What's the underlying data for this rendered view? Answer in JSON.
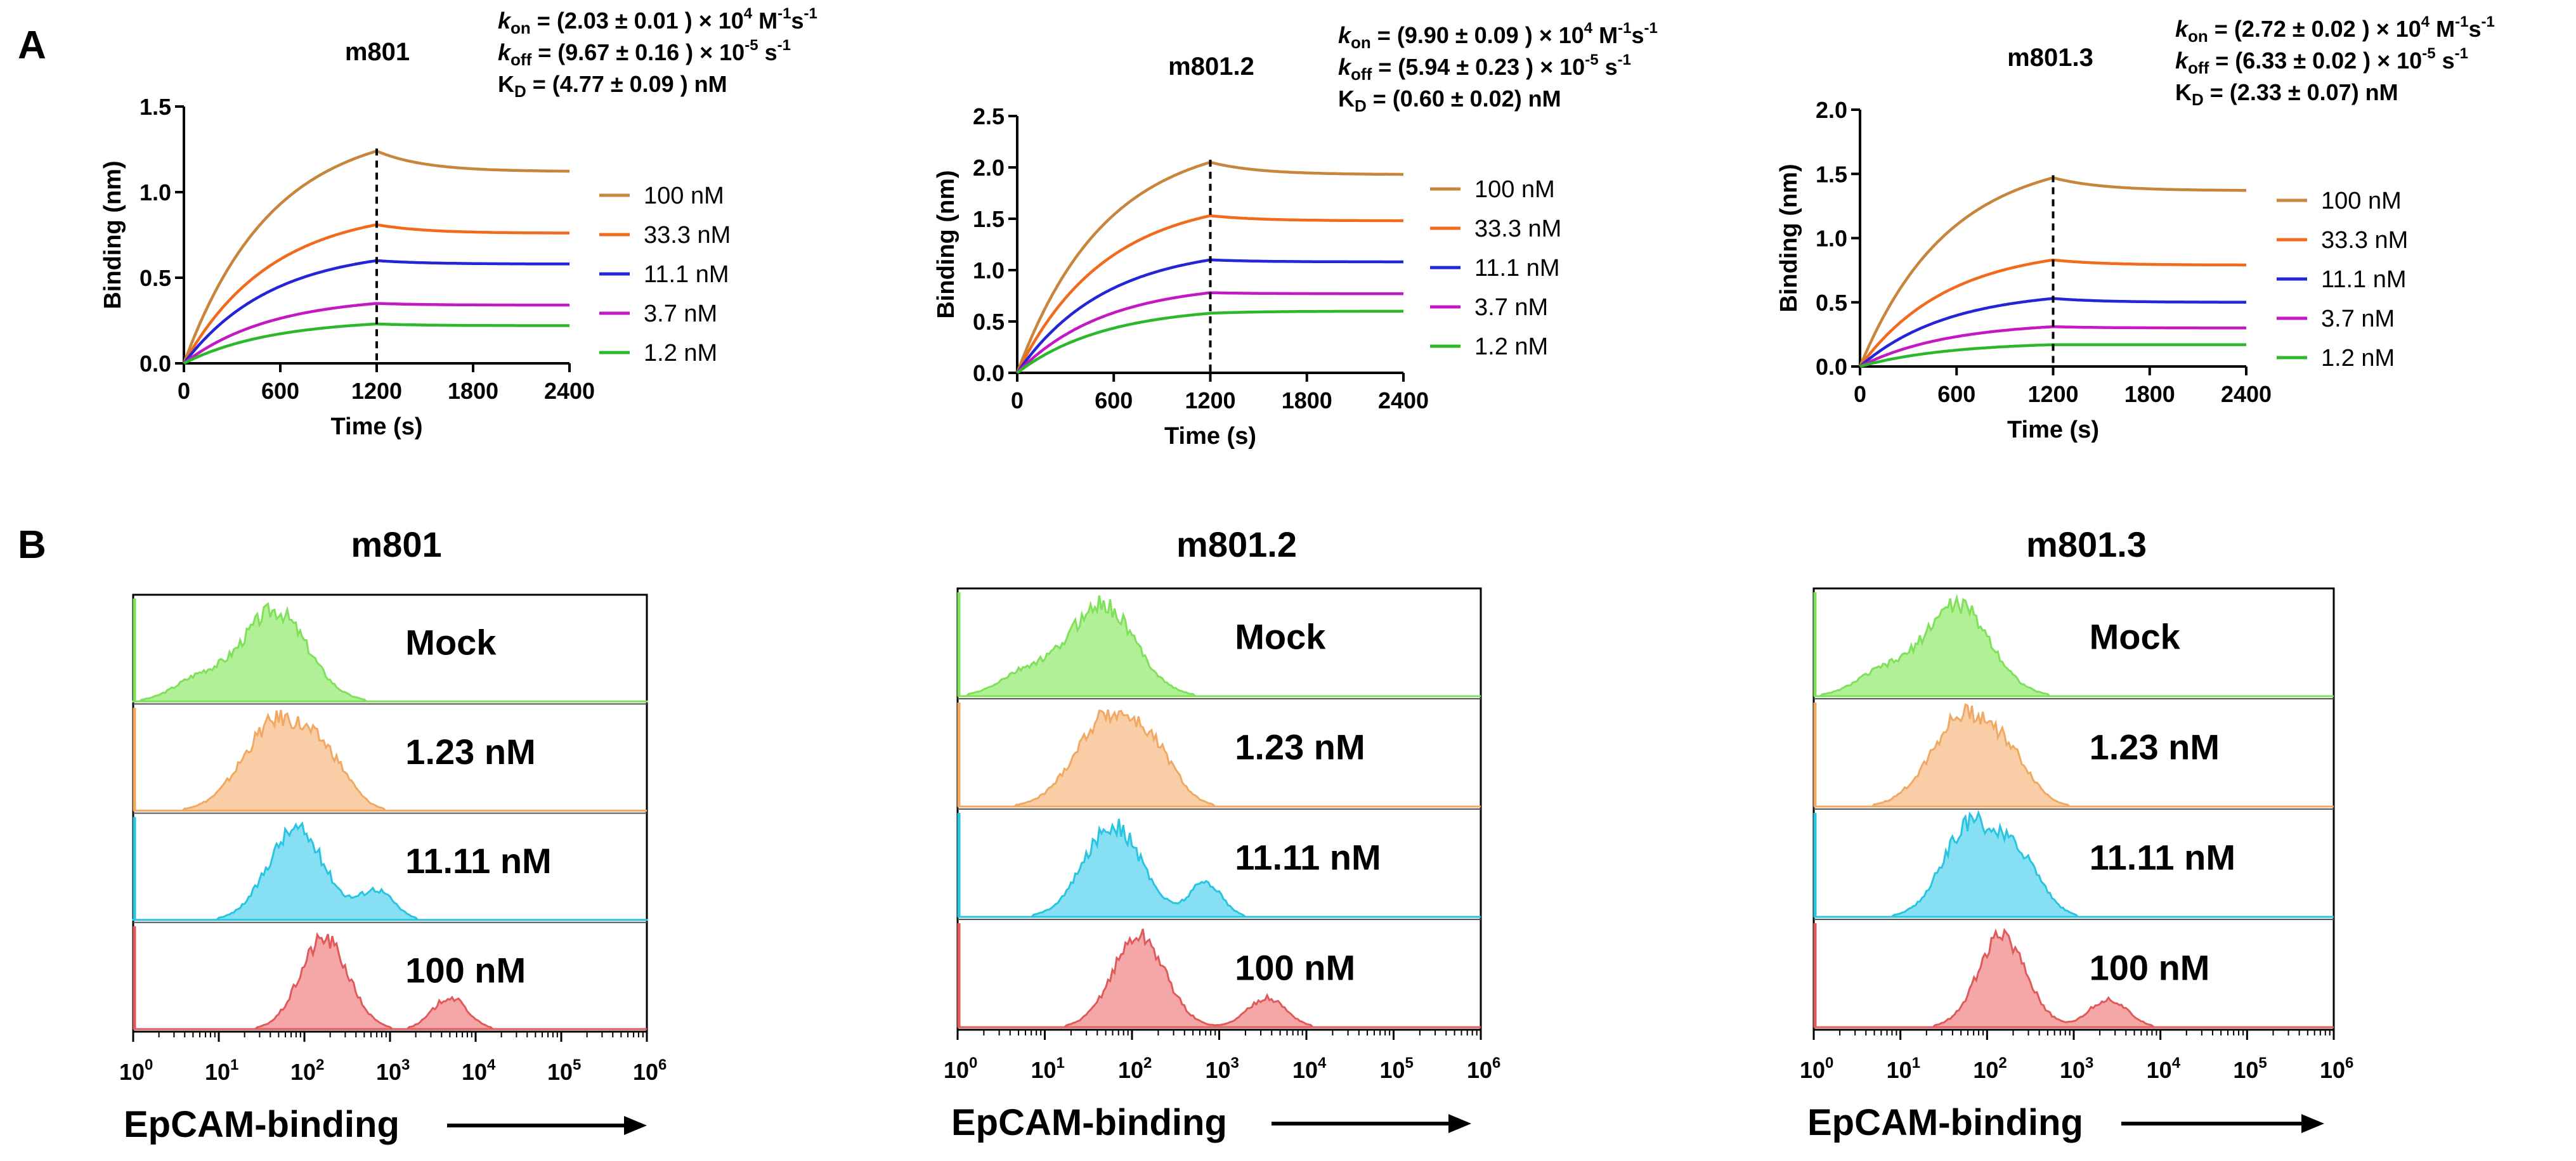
{
  "panel_labels": [
    "A",
    "B"
  ],
  "chart_data": [
    {
      "type": "line",
      "panel": "A",
      "title": "m801",
      "xlabel": "Time (s)",
      "ylabel": "Binding (nm)",
      "xlim": [
        0,
        2400
      ],
      "ylim": [
        0,
        1.5
      ],
      "xticks": [
        "0",
        "600",
        "1200",
        "1800",
        "2400"
      ],
      "yticks": [
        "0.0",
        "0.5",
        "1.0",
        "1.5"
      ],
      "dissociation_start": 1200,
      "stats": {
        "kon": {
          "sym": "k",
          "sub": "on",
          "text": " = (2.03 ± 0.01 ) × 10",
          "exp": "4",
          "unit": " M",
          "unit_exp": "-1",
          "tail": "s",
          "tail_exp": "-1"
        },
        "koff": {
          "sym": "k",
          "sub": "off",
          "text": " = (9.67 ± 0.16 ) × 10",
          "exp": "-5",
          "unit": " s",
          "unit_exp": "-1"
        },
        "kd": {
          "sym": "K",
          "sub": "D",
          "text": " = (4.77 ± 0.09 ) nM"
        }
      },
      "series": [
        {
          "name": "100 nM",
          "color": "#C8853C",
          "plateau": 1.24,
          "end": 1.12
        },
        {
          "name": "33.3 nM",
          "color": "#F26A1B",
          "plateau": 0.81,
          "end": 0.76
        },
        {
          "name": "11.1 nM",
          "color": "#2525D8",
          "plateau": 0.6,
          "end": 0.58
        },
        {
          "name": "3.7 nM",
          "color": "#C318C3",
          "plateau": 0.35,
          "end": 0.34
        },
        {
          "name": "1.2 nM",
          "color": "#2BB82B",
          "plateau": 0.23,
          "end": 0.22
        }
      ]
    },
    {
      "type": "line",
      "panel": "A",
      "title": "m801.2",
      "xlabel": "Time (s)",
      "ylabel": "Binding (nm)",
      "xlim": [
        0,
        2400
      ],
      "ylim": [
        0,
        2.5
      ],
      "xticks": [
        "0",
        "600",
        "1200",
        "1800",
        "2400"
      ],
      "yticks": [
        "0.0",
        "0.5",
        "1.0",
        "1.5",
        "2.0",
        "2.5"
      ],
      "dissociation_start": 1200,
      "stats": {
        "kon": {
          "sym": "k",
          "sub": "on",
          "text": " = (9.90 ± 0.09 ) × 10",
          "exp": "4",
          "unit": " M",
          "unit_exp": "-1",
          "tail": "s",
          "tail_exp": "-1"
        },
        "koff": {
          "sym": "k",
          "sub": "off",
          "text": " = (5.94 ± 0.23 ) × 10",
          "exp": "-5",
          "unit": " s",
          "unit_exp": "-1"
        },
        "kd": {
          "sym": "K",
          "sub": "D",
          "text": " = (0.60 ± 0.02) nM"
        }
      },
      "series": [
        {
          "name": "100 nM",
          "color": "#C8853C",
          "plateau": 2.05,
          "end": 1.93
        },
        {
          "name": "33.3 nM",
          "color": "#F26A1B",
          "plateau": 1.53,
          "end": 1.48
        },
        {
          "name": "11.1 nM",
          "color": "#2525D8",
          "plateau": 1.1,
          "end": 1.08
        },
        {
          "name": "3.7 nM",
          "color": "#C318C3",
          "plateau": 0.78,
          "end": 0.77
        },
        {
          "name": "1.2 nM",
          "color": "#2BB82B",
          "plateau": 0.58,
          "end": 0.6
        }
      ]
    },
    {
      "type": "line",
      "panel": "A",
      "title": "m801.3",
      "xlabel": "Time (s)",
      "ylabel": "Binding (nm)",
      "xlim": [
        0,
        2400
      ],
      "ylim": [
        0,
        2.0
      ],
      "xticks": [
        "0",
        "600",
        "1200",
        "1800",
        "2400"
      ],
      "yticks": [
        "0.0",
        "0.5",
        "1.0",
        "1.5",
        "2.0"
      ],
      "dissociation_start": 1200,
      "stats": {
        "kon": {
          "sym": "k",
          "sub": "on",
          "text": " = (2.72 ± 0.02 ) × 10",
          "exp": "4",
          "unit": " M",
          "unit_exp": "-1",
          "tail": "s",
          "tail_exp": "-1"
        },
        "koff": {
          "sym": "k",
          "sub": "off",
          "text": " = (6.33 ± 0.02 ) × 10",
          "exp": "-5",
          "unit": " s",
          "unit_exp": "-1"
        },
        "kd": {
          "sym": "K",
          "sub": "D",
          "text": " = (2.33 ± 0.07) nM"
        }
      },
      "series": [
        {
          "name": "100 nM",
          "color": "#C8853C",
          "plateau": 1.47,
          "end": 1.37
        },
        {
          "name": "33.3 nM",
          "color": "#F26A1B",
          "plateau": 0.83,
          "end": 0.79
        },
        {
          "name": "11.1 nM",
          "color": "#2525D8",
          "plateau": 0.53,
          "end": 0.5
        },
        {
          "name": "3.7 nM",
          "color": "#C318C3",
          "plateau": 0.31,
          "end": 0.3
        },
        {
          "name": "1.2 nM",
          "color": "#2BB82B",
          "plateau": 0.17,
          "end": 0.17
        }
      ]
    },
    {
      "type": "histogram",
      "panel": "B",
      "title": "m801",
      "xlabel": "EpCAM-binding",
      "xscale": "log",
      "xlim": [
        1,
        1000000
      ],
      "xticks": [
        {
          "base": "10",
          "exp": "0"
        },
        {
          "base": "10",
          "exp": "1"
        },
        {
          "base": "10",
          "exp": "2"
        },
        {
          "base": "10",
          "exp": "3"
        },
        {
          "base": "10",
          "exp": "4"
        },
        {
          "base": "10",
          "exp": "5"
        },
        {
          "base": "10",
          "exp": "6"
        }
      ],
      "samples": [
        {
          "name": "Mock",
          "color": "#7FE05A",
          "fill": "#A8EE8C",
          "peaks": [
            [
              45,
              1.0,
              0.38
            ],
            [
              6,
              0.25,
              0.3
            ]
          ]
        },
        {
          "name": "1.23 nM",
          "color": "#F0A862",
          "fill": "#F8C99C",
          "peaks": [
            [
              50,
              1.0,
              0.4
            ],
            [
              200,
              0.35,
              0.25
            ]
          ]
        },
        {
          "name": "11.11 nM",
          "color": "#28C4E0",
          "fill": "#7ADCF2",
          "peaks": [
            [
              80,
              1.0,
              0.33
            ],
            [
              700,
              0.32,
              0.2
            ]
          ]
        },
        {
          "name": "100 nM",
          "color": "#E05A5A",
          "fill": "#F49C9C",
          "peaks": [
            [
              170,
              1.0,
              0.28
            ],
            [
              5000,
              0.35,
              0.2
            ]
          ]
        }
      ]
    },
    {
      "type": "histogram",
      "panel": "B",
      "title": "m801.2",
      "xlabel": "EpCAM-binding",
      "xscale": "log",
      "xlim": [
        1,
        1000000
      ],
      "xticks": [
        {
          "base": "10",
          "exp": "0"
        },
        {
          "base": "10",
          "exp": "1"
        },
        {
          "base": "10",
          "exp": "2"
        },
        {
          "base": "10",
          "exp": "3"
        },
        {
          "base": "10",
          "exp": "4"
        },
        {
          "base": "10",
          "exp": "5"
        },
        {
          "base": "10",
          "exp": "6"
        }
      ],
      "samples": [
        {
          "name": "Mock",
          "color": "#7FE05A",
          "fill": "#A8EE8C",
          "peaks": [
            [
              45,
              1.0,
              0.38
            ],
            [
              6,
              0.25,
              0.3
            ]
          ]
        },
        {
          "name": "1.23 nM",
          "color": "#F0A862",
          "fill": "#F8C99C",
          "peaks": [
            [
              55,
              1.0,
              0.38
            ],
            [
              200,
              0.35,
              0.25
            ]
          ]
        },
        {
          "name": "11.11 nM",
          "color": "#28C4E0",
          "fill": "#7ADCF2",
          "peaks": [
            [
              60,
              1.0,
              0.33
            ],
            [
              700,
              0.38,
              0.18
            ]
          ]
        },
        {
          "name": "100 nM",
          "color": "#E05A5A",
          "fill": "#F49C9C",
          "peaks": [
            [
              120,
              1.0,
              0.3
            ],
            [
              3500,
              0.32,
              0.22
            ]
          ]
        }
      ]
    },
    {
      "type": "histogram",
      "panel": "B",
      "title": "m801.3",
      "xlabel": "EpCAM-binding",
      "xscale": "log",
      "xlim": [
        1,
        1000000
      ],
      "xticks": [
        {
          "base": "10",
          "exp": "0"
        },
        {
          "base": "10",
          "exp": "1"
        },
        {
          "base": "10",
          "exp": "2"
        },
        {
          "base": "10",
          "exp": "3"
        },
        {
          "base": "10",
          "exp": "4"
        },
        {
          "base": "10",
          "exp": "5"
        },
        {
          "base": "10",
          "exp": "6"
        }
      ],
      "samples": [
        {
          "name": "Mock",
          "color": "#7FE05A",
          "fill": "#A8EE8C",
          "peaks": [
            [
              45,
              1.0,
              0.38
            ],
            [
              6,
              0.25,
              0.3
            ]
          ]
        },
        {
          "name": "1.23 nM",
          "color": "#F0A862",
          "fill": "#F8C99C",
          "peaks": [
            [
              55,
              1.0,
              0.38
            ],
            [
              200,
              0.3,
              0.25
            ]
          ]
        },
        {
          "name": "11.11 nM",
          "color": "#28C4E0",
          "fill": "#7ADCF2",
          "peaks": [
            [
              65,
              1.0,
              0.32
            ],
            [
              250,
              0.55,
              0.25
            ]
          ]
        },
        {
          "name": "100 nM",
          "color": "#E05A5A",
          "fill": "#F49C9C",
          "peaks": [
            [
              150,
              1.0,
              0.28
            ],
            [
              2500,
              0.3,
              0.22
            ]
          ]
        }
      ]
    }
  ]
}
